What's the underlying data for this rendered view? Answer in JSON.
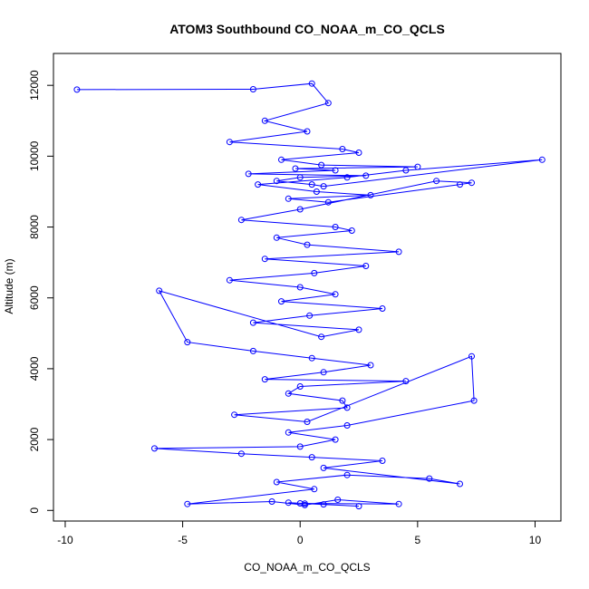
{
  "chart_data": {
    "type": "line",
    "title": "ATOM3 Southbound CO_NOAA_m_CO_QCLS",
    "xlabel": "CO_NOAA_m_CO_QCLS",
    "ylabel": "Altitude (m)",
    "xlim": [
      -10.5,
      11.1
    ],
    "ylim": [
      -300,
      12900
    ],
    "xticks": [
      -10,
      -5,
      0,
      5,
      10
    ],
    "yticks": [
      0,
      2000,
      4000,
      6000,
      8000,
      10000,
      12000
    ],
    "grid": false,
    "legend": "none",
    "series_color": "#0000FF",
    "marker": "open-circle",
    "series": [
      {
        "x": [
          -9.5,
          -2.0,
          0.5,
          1.2,
          -1.5,
          0.3,
          -3.0,
          1.8,
          2.5,
          -0.8,
          0.9,
          5.0,
          -0.2,
          1.5,
          -2.2,
          2.8,
          0.0,
          -1.0,
          0.5,
          1.0,
          10.3,
          4.5,
          2.0,
          -1.8,
          0.7,
          3.0,
          -0.5,
          1.2,
          6.8,
          7.3,
          5.8,
          0.0,
          -2.5,
          1.5,
          2.2,
          -1.0,
          0.3,
          4.2,
          -1.5,
          2.8,
          0.6,
          -3.0,
          0.0,
          1.5,
          -0.8,
          3.5,
          0.4,
          -2.0,
          2.5,
          0.9,
          -6.0,
          -4.8,
          -2.0,
          0.5,
          3.0,
          1.0,
          -1.5,
          4.5,
          0.0,
          -0.5,
          1.8,
          2.0,
          -2.8,
          0.3,
          7.3,
          7.4,
          2.0,
          -0.5,
          1.5,
          0.0,
          -6.2,
          -2.5,
          0.5,
          3.5,
          1.0,
          6.8,
          5.5,
          2.0,
          -1.0,
          0.6,
          -4.8,
          -1.2,
          0.2,
          1.6,
          4.2,
          0.0,
          2.5,
          -0.5,
          1.0,
          0.2
        ],
        "y": [
          11880,
          11890,
          12050,
          11500,
          11000,
          10700,
          10400,
          10200,
          10100,
          9900,
          9750,
          9700,
          9650,
          9600,
          9500,
          9450,
          9400,
          9300,
          9200,
          9150,
          9900,
          9600,
          9400,
          9200,
          9000,
          8900,
          8800,
          8700,
          9200,
          9250,
          9300,
          8500,
          8200,
          8000,
          7900,
          7700,
          7500,
          7300,
          7100,
          6900,
          6700,
          6500,
          6300,
          6100,
          5900,
          5700,
          5500,
          5300,
          5100,
          4900,
          6200,
          4750,
          4500,
          4300,
          4100,
          3900,
          3700,
          3650,
          3500,
          3300,
          3100,
          2900,
          2700,
          2500,
          4350,
          3100,
          2400,
          2200,
          2000,
          1800,
          1750,
          1600,
          1500,
          1400,
          1200,
          750,
          900,
          1000,
          800,
          600,
          180,
          250,
          150,
          300,
          180,
          200,
          120,
          220,
          170,
          190
        ]
      }
    ]
  }
}
